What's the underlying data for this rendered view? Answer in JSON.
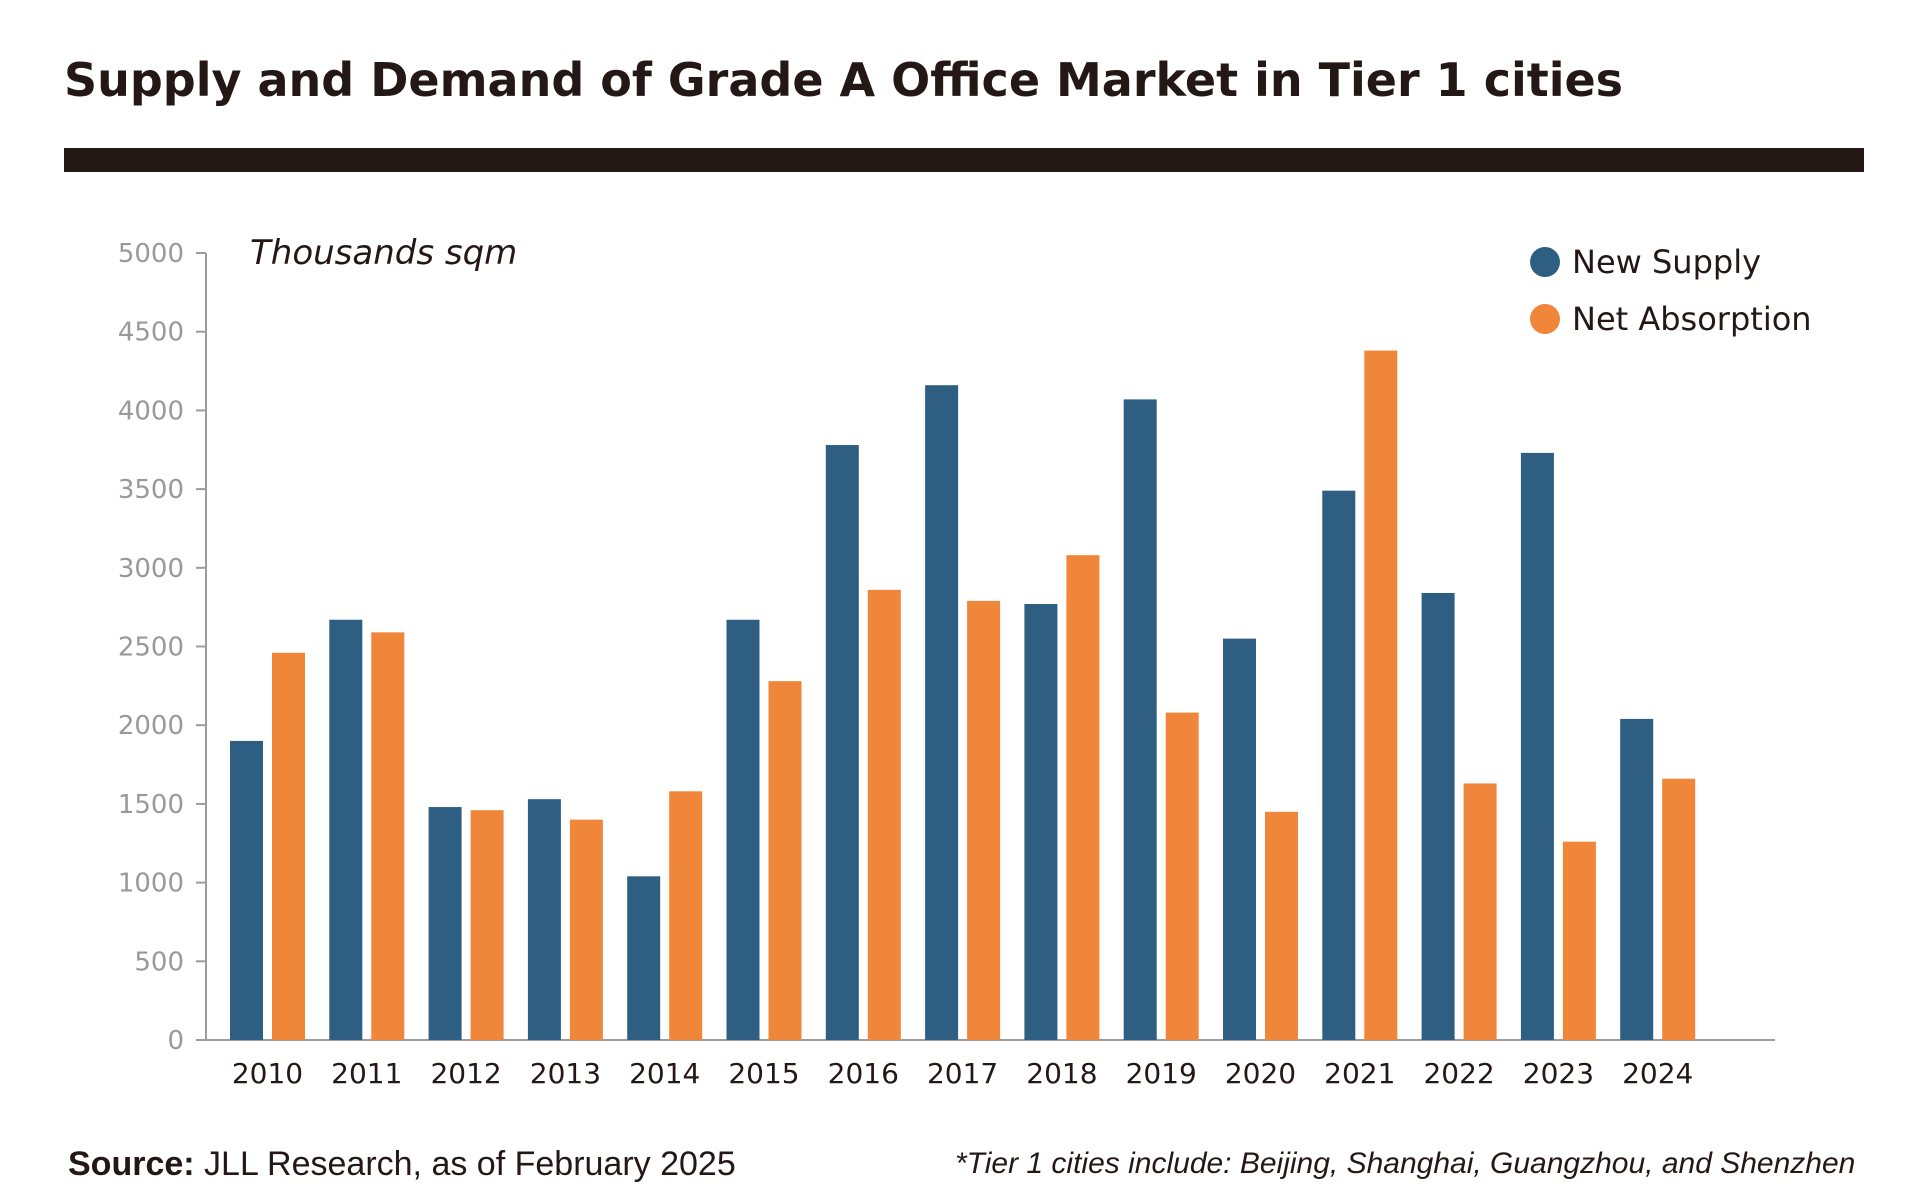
{
  "title": "Supply and Demand of Grade A Office Market in Tier 1 cities",
  "source": {
    "label": "Source:",
    "text": " JLL Research, as of February 2025"
  },
  "note": "*Tier 1 cities include: Beijing, Shanghai, Guangzhou, and Shenzhen",
  "colors": {
    "new_supply": "#2e5f82",
    "net_absorption": "#f08639",
    "axis": "#9c9c9c",
    "axis_text": "#999999",
    "dark_text": "#231815"
  },
  "chart_data": {
    "type": "bar",
    "title": "Supply and Demand of Grade A Office Market in Tier 1 cities",
    "xlabel": "",
    "ylabel": "Thousands sqm",
    "ylim": [
      0,
      5000
    ],
    "yticks": [
      0,
      500,
      1000,
      1500,
      2000,
      2500,
      3000,
      3500,
      4000,
      4500,
      5000
    ],
    "grid": false,
    "legend_position": "top-right",
    "categories": [
      "2010",
      "2011",
      "2012",
      "2013",
      "2014",
      "2015",
      "2016",
      "2017",
      "2018",
      "2019",
      "2020",
      "2021",
      "2022",
      "2023",
      "2024"
    ],
    "series": [
      {
        "name": "New Supply",
        "color": "#2e5f82",
        "values": [
          1900,
          2670,
          1480,
          1530,
          1040,
          2670,
          3780,
          4160,
          2770,
          4070,
          2550,
          3490,
          2840,
          3730,
          2040
        ]
      },
      {
        "name": "Net Absorption",
        "color": "#f08639",
        "values": [
          2460,
          2590,
          1460,
          1400,
          1580,
          2280,
          2860,
          2790,
          3080,
          2080,
          1450,
          4380,
          1630,
          1260,
          1660
        ]
      }
    ]
  }
}
